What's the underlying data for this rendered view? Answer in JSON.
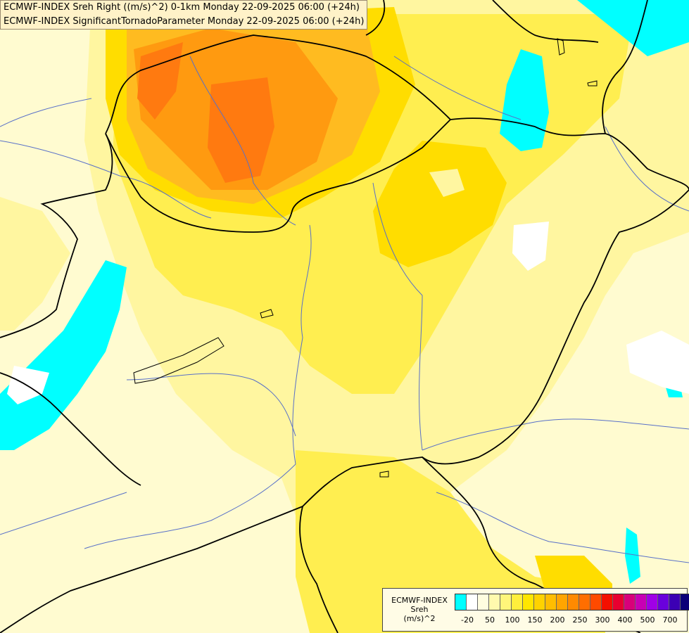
{
  "titles": {
    "line1": "ECMWF-INDEX Sreh Right ((m/s)^2) 0-1km Monday 22-09-2025 06:00 (+24h)",
    "line2": "ECMWF-INDEX SignificantTornadoParameter Monday 22-09-2025 06:00 (+24h)"
  },
  "legend": {
    "label_line1": "ECMWF-INDEX",
    "label_line2": "Sreh",
    "label_line3": "(m/s)^2",
    "swatch_colors": [
      "#00ffff",
      "#ffffff",
      "#fffde0",
      "#fffaae",
      "#fff67a",
      "#ffef3c",
      "#ffe600",
      "#ffd200",
      "#ffbd00",
      "#ffa500",
      "#ff8a00",
      "#ff6e00",
      "#ff4a00",
      "#f41000",
      "#e80030",
      "#d8007a",
      "#c800b4",
      "#a000e6",
      "#6a00dc",
      "#3c00b4",
      "#0c0078"
    ],
    "ticks": [
      "-20",
      "50",
      "100",
      "150",
      "200",
      "250",
      "300",
      "400",
      "500",
      "700"
    ]
  },
  "map_colors": {
    "background": "#fffbd0",
    "light_yellow": "#fff6a0",
    "yellow": "#ffee50",
    "gold": "#ffdd00",
    "orange_light": "#ffbb20",
    "orange": "#ff9a10",
    "orange_dark": "#ff7a10",
    "cyan": "#00ffff",
    "river": "#5870c8",
    "border": "#000000"
  }
}
